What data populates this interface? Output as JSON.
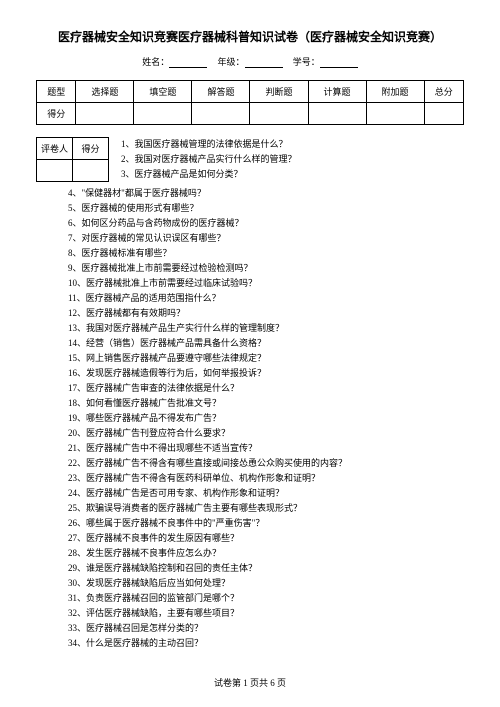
{
  "title": "医疗器械安全知识竞赛医疗器械科普知识试卷（医疗器械安全知识竞赛）",
  "info": {
    "name_label": "姓名：",
    "grade_label": "年级：",
    "id_label": "学号："
  },
  "score_table": {
    "header": [
      "题型",
      "选择题",
      "填空题",
      "解答题",
      "判断题",
      "计算题",
      "附加题",
      "总分"
    ],
    "row_label": "得分"
  },
  "small_table": {
    "col1": "评卷人",
    "col2": "得分"
  },
  "top_questions": [
    "1、我国医疗器械管理的法律依据是什么？",
    "2、我国对医疗器械产品实行什么样的管理？",
    "3、医疗器械产品是如何分类？"
  ],
  "questions": [
    "4、\"保健器材\"都属于医疗器械吗？",
    "5、医疗器械的使用形式有哪些？",
    "6、如何区分药品与含药物成份的医疗器械？",
    "7、对医疗器械的常见认识误区有哪些？",
    "8、医疗器械标准有哪些？",
    "9、医疗器械批准上市前需要经过检验检测吗？",
    "10、医疗器械批准上市前需要经过临床试验吗？",
    "11、医疗器械产品的适用范围指什么？",
    "12、医疗器械都有有效期吗？",
    "13、我国对医疗器械产品生产实行什么样的管理制度？",
    "14、经营（销售）医疗器械产品需具备什么资格？",
    "15、网上销售医疗器械产品要遵守哪些法律规定？",
    "16、发现医疗器械造假等行为后，如何举报投诉？",
    "17、医疗器械广告审查的法律依据是什么？",
    "18、如何看懂医疗器械广告批准文号？",
    "19、哪些医疗器械产品不得发布广告？",
    "20、医疗器械广告刊登应符合什么要求？",
    "21、医疗器械广告中不得出现哪些不适当宣传？",
    "22、医疗器械广告不得含有哪些直接或间接怂恿公众购买使用的内容？",
    "23、医疗器械广告不得含有医药科研单位、机构作形象和证明？",
    "24、医疗器械广告是否可用专家、机构作形象和证明？",
    "25、欺骗误导消费者的医疗器械广告主要有哪些表现形式？",
    "26、哪些属于医疗器械不良事件中的\"严重伤害\"？",
    "27、医疗器械不良事件的发生原因有哪些？",
    "28、发生医疗器械不良事件应怎么办？",
    "29、谁是医疗器械缺陷控制和召回的责任主体？",
    "30、发现医疗器械缺陷后应当如何处理？",
    "31、负责医疗器械召回的监管部门是哪个？",
    "32、评估医疗器械缺陷，主要有哪些项目？",
    "33、医疗器械召回是怎样分类的？",
    "34、什么是医疗器械的主动召回？"
  ],
  "footer": "试卷第 1 页共 6 页"
}
